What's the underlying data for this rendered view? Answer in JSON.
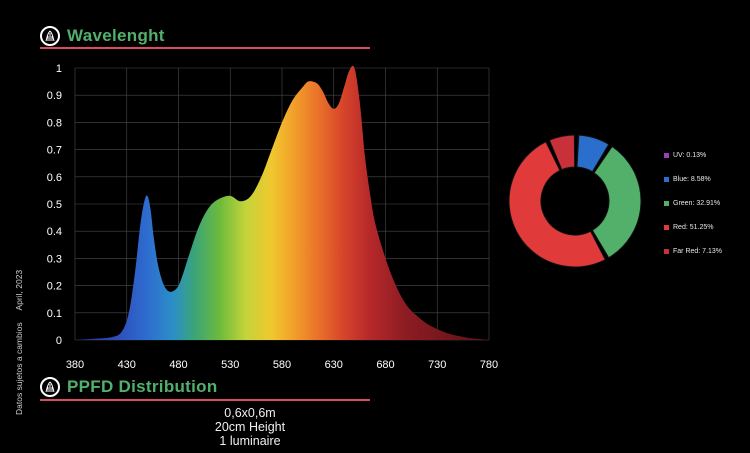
{
  "header": {
    "title": "Wavelenght",
    "subtitle": "PPFD Distribution"
  },
  "ppfd": {
    "lines": [
      "0,6x0,6m",
      "20cm Height",
      "1 luminaire"
    ]
  },
  "side_note": {
    "left": "Datos sujetos a cambios",
    "right": "April, 2023"
  },
  "colors": {
    "accent_rule": "#d94c5b",
    "title": "#52b06b",
    "uv": "#9b3fb5",
    "blue": "#2a6fcc",
    "green": "#52b06b",
    "red": "#e03a3a",
    "far_red": "#c8303a"
  },
  "chart_data": [
    {
      "type": "area",
      "title": "",
      "xlabel": "",
      "ylabel": "",
      "xlim": [
        380,
        780
      ],
      "ylim": [
        0,
        1
      ],
      "x_ticks": [
        380,
        430,
        480,
        530,
        580,
        630,
        680,
        730,
        780
      ],
      "y_ticks": [
        0,
        0.1,
        0.2,
        0.3,
        0.4,
        0.5,
        0.6,
        0.7,
        0.8,
        0.9,
        1
      ],
      "y_tick_labels": [
        "0",
        "0.1",
        "0.2",
        "0.3",
        "0.4",
        "0.5",
        "0.6",
        "0.7",
        "0.8",
        "0.9",
        "1"
      ],
      "grid": true,
      "fill": "visible-spectrum gradient",
      "x": [
        380,
        400,
        415,
        425,
        432,
        438,
        443,
        447,
        450,
        453,
        456,
        460,
        465,
        470,
        475,
        480,
        485,
        490,
        500,
        510,
        520,
        530,
        540,
        550,
        560,
        570,
        580,
        590,
        600,
        605,
        610,
        615,
        620,
        625,
        630,
        635,
        640,
        645,
        650,
        655,
        660,
        665,
        670,
        680,
        690,
        700,
        710,
        720,
        730,
        740,
        750,
        760,
        770,
        780
      ],
      "y": [
        0,
        0.005,
        0.01,
        0.03,
        0.1,
        0.25,
        0.42,
        0.51,
        0.53,
        0.48,
        0.38,
        0.28,
        0.21,
        0.18,
        0.18,
        0.2,
        0.25,
        0.31,
        0.42,
        0.49,
        0.52,
        0.53,
        0.51,
        0.53,
        0.6,
        0.7,
        0.8,
        0.88,
        0.93,
        0.95,
        0.95,
        0.94,
        0.91,
        0.87,
        0.85,
        0.87,
        0.93,
        0.99,
        1,
        0.88,
        0.68,
        0.54,
        0.43,
        0.3,
        0.2,
        0.13,
        0.09,
        0.06,
        0.04,
        0.025,
        0.015,
        0.008,
        0.004,
        0
      ]
    },
    {
      "type": "pie",
      "style": "donut",
      "categories": [
        "UV",
        "Blue",
        "Green",
        "Red",
        "Far Red"
      ],
      "values": [
        0.13,
        8.58,
        32.91,
        51.25,
        7.13
      ],
      "legend_labels": [
        "UV: 0.13%",
        "Blue: 8.58%",
        "Green: 32.91%",
        "Red: 51.25%",
        "Far Red: 7.13%"
      ],
      "colors": [
        "#9b3fb5",
        "#2a6fcc",
        "#52b06b",
        "#e03a3a",
        "#c8303a"
      ],
      "legend_position": "right"
    }
  ]
}
